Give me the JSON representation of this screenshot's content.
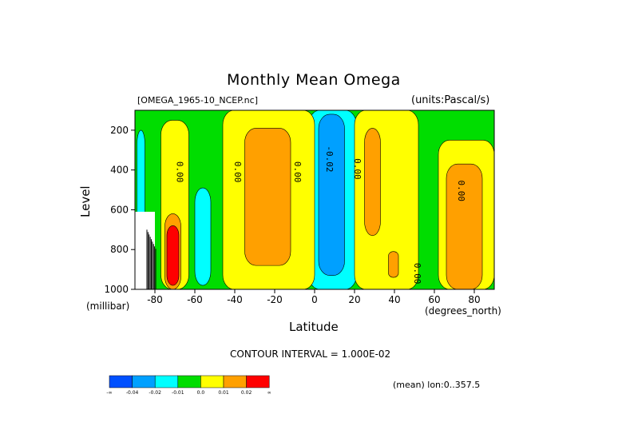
{
  "header": {
    "title": "Monthly Mean Omega",
    "dataset": "[OMEGA_1965-10_NCEP.nc]",
    "units": "(units:Pascal/s)"
  },
  "axes": {
    "xlabel": "Latitude",
    "ylabel": "Level",
    "x_unit": "(degrees_north)",
    "y_unit": "(millibar)"
  },
  "footer": {
    "contour_interval": "CONTOUR INTERVAL = 1.000E-02",
    "mean_note": "(mean) lon:0..357.5"
  },
  "colorbar": {
    "colors": [
      "#0050ff",
      "#00a0ff",
      "#00ffff",
      "#00dd00",
      "#ffff00",
      "#ffa000",
      "#ff0000"
    ],
    "labels": [
      "-∞",
      "-0.04",
      "-0.02",
      "-0.01",
      "0.0",
      "0.01",
      "0.02",
      "∞"
    ]
  },
  "chart_data": {
    "type": "heatmap",
    "title": "Monthly Mean Omega",
    "xlabel": "Latitude",
    "ylabel": "Level",
    "x_ticks": [
      -80,
      -60,
      -40,
      -20,
      0,
      20,
      40,
      60,
      80
    ],
    "y_ticks": [
      200,
      400,
      600,
      800,
      1000
    ],
    "xlim": [
      -90,
      90
    ],
    "ylim": [
      1000,
      100
    ],
    "contour_labels": [
      {
        "text": "0.00",
        "lat": -69,
        "lev": 410
      },
      {
        "text": "0.00",
        "lat": -40,
        "lev": 410
      },
      {
        "text": "0.00",
        "lat": -10,
        "lev": 410
      },
      {
        "text": "-0.02",
        "lat": 6,
        "lev": 345
      },
      {
        "text": "0.00",
        "lat": 20,
        "lev": 395
      },
      {
        "text": "0.00",
        "lat": 50,
        "lev": 920
      },
      {
        "text": "0.00",
        "lat": 72,
        "lev": 505
      }
    ],
    "regions": [
      {
        "level": "-0.01",
        "color": "#00ffff",
        "lat": [
          -89,
          -85
        ],
        "lev": [
          200,
          740
        ]
      },
      {
        "level": "-0.01",
        "color": "#00ffff",
        "lat": [
          -60,
          -52
        ],
        "lev": [
          490,
          980
        ]
      },
      {
        "level": "-0.01",
        "color": "#00ffff",
        "lat": [
          -3,
          21
        ],
        "lev": [
          100,
          1000
        ]
      },
      {
        "level": "-0.02",
        "color": "#00a0ff",
        "lat": [
          2,
          15
        ],
        "lev": [
          120,
          930
        ]
      },
      {
        "level": "0.00",
        "color": "#ffff00",
        "lat": [
          -77,
          -63
        ],
        "lev": [
          150,
          1000
        ]
      },
      {
        "level": "0.00",
        "color": "#ffff00",
        "lat": [
          -46,
          0
        ],
        "lev": [
          100,
          1000
        ]
      },
      {
        "level": "0.00",
        "color": "#ffff00",
        "lat": [
          20,
          52
        ],
        "lev": [
          100,
          1000
        ]
      },
      {
        "level": "0.00",
        "color": "#ffff00",
        "lat": [
          62,
          90
        ],
        "lev": [
          250,
          1000
        ]
      },
      {
        "level": "0.01",
        "color": "#ffa000",
        "lat": [
          -35,
          -12
        ],
        "lev": [
          190,
          880
        ]
      },
      {
        "level": "0.01",
        "color": "#ffa000",
        "lat": [
          25,
          33
        ],
        "lev": [
          190,
          730
        ]
      },
      {
        "level": "0.01",
        "color": "#ffa000",
        "lat": [
          37,
          42
        ],
        "lev": [
          810,
          940
        ]
      },
      {
        "level": "0.01",
        "color": "#ffa000",
        "lat": [
          66,
          84
        ],
        "lev": [
          370,
          1000
        ]
      },
      {
        "level": "0.01",
        "color": "#ffa000",
        "lat": [
          -75,
          -67
        ],
        "lev": [
          620,
          1000
        ]
      },
      {
        "level": "0.02",
        "color": "#ff0000",
        "lat": [
          -74,
          -68
        ],
        "lev": [
          680,
          980
        ]
      }
    ]
  }
}
